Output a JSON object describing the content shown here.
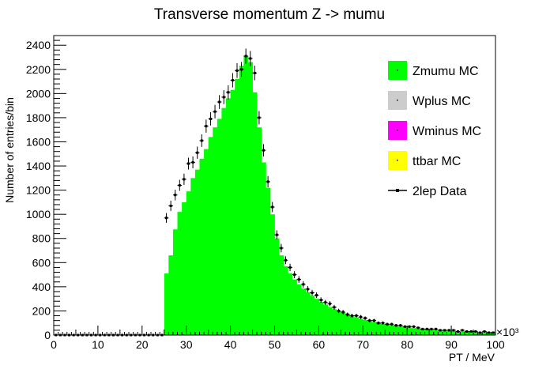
{
  "chart_data": {
    "type": "bar",
    "title": "Transverse momentum Z -> mumu",
    "xlabel": "PT / MeV",
    "ylabel": "Number of entries/bin",
    "x_multiplier_label": "×10³",
    "xlim": [
      0,
      100
    ],
    "ylim": [
      0,
      2480
    ],
    "x_ticks": [
      "0",
      "10",
      "20",
      "30",
      "40",
      "50",
      "60",
      "70",
      "80",
      "90",
      "100"
    ],
    "y_ticks": [
      "0",
      "200",
      "400",
      "600",
      "800",
      "1000",
      "1200",
      "1400",
      "1600",
      "1800",
      "2000",
      "2200",
      "2400"
    ],
    "bin_width": 1,
    "bin_edges_start": 0,
    "grid": false,
    "legend_position": "top-right",
    "legend": [
      {
        "label": "Zmumu MC",
        "style": "fill",
        "color": "#00ff00"
      },
      {
        "label": "Wplus MC",
        "style": "fill",
        "color": "#cccccc"
      },
      {
        "label": "Wminus MC",
        "style": "fill",
        "color": "#ff00ff"
      },
      {
        "label": "ttbar MC",
        "style": "fill",
        "color": "#ffff00"
      },
      {
        "label": "2lep Data",
        "style": "marker",
        "color": "#000000"
      }
    ],
    "series": [
      {
        "name": "Zmumu MC",
        "kind": "histogram",
        "color": "#00ff00",
        "values": [
          0,
          0,
          0,
          0,
          0,
          0,
          0,
          0,
          0,
          0,
          0,
          0,
          0,
          0,
          0,
          0,
          0,
          0,
          0,
          0,
          0,
          0,
          0,
          0,
          0,
          510,
          660,
          875,
          1020,
          1100,
          1190,
          1300,
          1370,
          1460,
          1540,
          1640,
          1720,
          1790,
          1880,
          1960,
          2030,
          2120,
          2230,
          2310,
          2260,
          2010,
          1720,
          1430,
          1220,
          1000,
          800,
          660,
          570,
          510,
          460,
          420,
          385,
          355,
          325,
          300,
          275,
          252,
          232,
          214,
          198,
          184,
          170,
          158,
          146,
          135,
          125,
          116,
          108,
          100,
          93,
          87,
          81,
          76,
          71,
          66,
          62,
          58,
          54,
          51,
          48,
          45,
          42,
          40,
          37,
          35,
          33,
          31,
          29,
          27,
          26,
          24,
          23,
          21,
          20,
          19
        ]
      },
      {
        "name": "2lep Data",
        "kind": "points",
        "color": "#000000",
        "values": [
          0,
          0,
          0,
          0,
          0,
          0,
          0,
          0,
          0,
          0,
          0,
          0,
          0,
          0,
          0,
          0,
          0,
          0,
          0,
          0,
          0,
          0,
          0,
          0,
          0,
          970,
          1070,
          1160,
          1240,
          1290,
          1420,
          1430,
          1510,
          1610,
          1730,
          1790,
          1850,
          1930,
          1970,
          2010,
          2110,
          2190,
          2200,
          2310,
          2290,
          2170,
          1800,
          1530,
          1270,
          1060,
          830,
          720,
          620,
          560,
          500,
          460,
          420,
          380,
          350,
          330,
          290,
          270,
          260,
          230,
          200,
          190,
          170,
          160,
          160,
          150,
          140,
          120,
          120,
          100,
          100,
          90,
          90,
          80,
          80,
          70,
          70,
          70,
          60,
          50,
          50,
          50,
          50,
          40,
          40,
          40,
          40,
          30,
          40,
          30,
          30,
          30,
          20,
          30,
          20,
          20
        ]
      }
    ]
  }
}
